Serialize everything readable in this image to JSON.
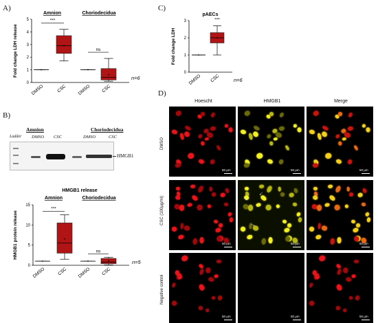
{
  "panels": {
    "A": "A)",
    "B": "B)",
    "C": "C)",
    "D": "D)"
  },
  "chart_data": [
    {
      "id": "A",
      "type": "box",
      "ylabel": "Fold change LDH release",
      "ylim": [
        0,
        5
      ],
      "yticks": [
        "0",
        "1",
        "2",
        "3",
        "4",
        "5"
      ],
      "groups": [
        "Amnion",
        "Choriodecidua"
      ],
      "categories": [
        "DMSO",
        "CSC",
        "DMSO",
        "CSC"
      ],
      "boxes": [
        {
          "min": 1,
          "q1": 1,
          "median": 1,
          "q3": 1,
          "max": 1,
          "mean": 1
        },
        {
          "min": 1.7,
          "q1": 2.3,
          "median": 2.9,
          "q3": 3.7,
          "max": 4.2,
          "mean": 2.9
        },
        {
          "min": 1,
          "q1": 1,
          "median": 1,
          "q3": 1,
          "max": 1,
          "mean": 1
        },
        {
          "min": 0.1,
          "q1": 0.2,
          "median": 0.4,
          "q3": 1.1,
          "max": 1.9,
          "mean": 0.6
        }
      ],
      "significance": [
        {
          "between": [
            0,
            1
          ],
          "label": "***"
        },
        {
          "between": [
            2,
            3
          ],
          "label": "ns"
        }
      ],
      "n_label": "n=6"
    },
    {
      "id": "C",
      "type": "box",
      "title": "pAECs",
      "ylabel": "Fold change LDH",
      "ylim": [
        0,
        3
      ],
      "yticks": [
        "0",
        "1",
        "2",
        "3"
      ],
      "categories": [
        "DMSO",
        "CSC"
      ],
      "boxes": [
        {
          "min": 1,
          "q1": 1,
          "median": 1,
          "q3": 1,
          "max": 1,
          "mean": 1
        },
        {
          "min": 1.0,
          "q1": 1.7,
          "median": 2.0,
          "q3": 2.3,
          "max": 2.7,
          "mean": 2.0
        }
      ],
      "significance": [
        {
          "between": [
            1,
            1
          ],
          "label": "***"
        }
      ],
      "n_label": "n=6"
    },
    {
      "id": "B",
      "type": "box",
      "title": "HMGB1 release",
      "ylabel": "HMGB1 protein release",
      "ylim": [
        0,
        15
      ],
      "yticks": [
        "0",
        "5",
        "10",
        "15"
      ],
      "groups": [
        "Amnion",
        "Choriodecidua"
      ],
      "categories": [
        "DMSO",
        "CSC",
        "DMSO",
        "CSC"
      ],
      "boxes": [
        {
          "min": 1,
          "q1": 1,
          "median": 1,
          "q3": 1,
          "max": 1,
          "mean": 1
        },
        {
          "min": 1.5,
          "q1": 3.0,
          "median": 5.5,
          "q3": 10.5,
          "max": 12.5,
          "mean": 6.5
        },
        {
          "min": 1,
          "q1": 1,
          "median": 1,
          "q3": 1,
          "max": 1,
          "mean": 1
        },
        {
          "min": 0.1,
          "q1": 0.4,
          "median": 0.8,
          "q3": 1.7,
          "max": 2.0,
          "mean": 1.0
        }
      ],
      "significance": [
        {
          "between": [
            0,
            1
          ],
          "label": "***"
        },
        {
          "between": [
            2,
            3
          ],
          "label": "ns"
        }
      ],
      "n_label": "n=5"
    }
  ],
  "blot": {
    "ladder": "Ladder",
    "group_amnion": "Amnion",
    "group_chorio": "Choriodecidua",
    "lanes": [
      "DMSO",
      "CSC",
      "DMSO",
      "CSC"
    ],
    "band_label": "HMGB1"
  },
  "micrographs": {
    "columns": [
      "Hoescht",
      "HMGB1",
      "Merge"
    ],
    "rows": [
      "DMSO",
      "CSC (100µg/ml)",
      "Negative control"
    ],
    "scale": "50 µm"
  }
}
